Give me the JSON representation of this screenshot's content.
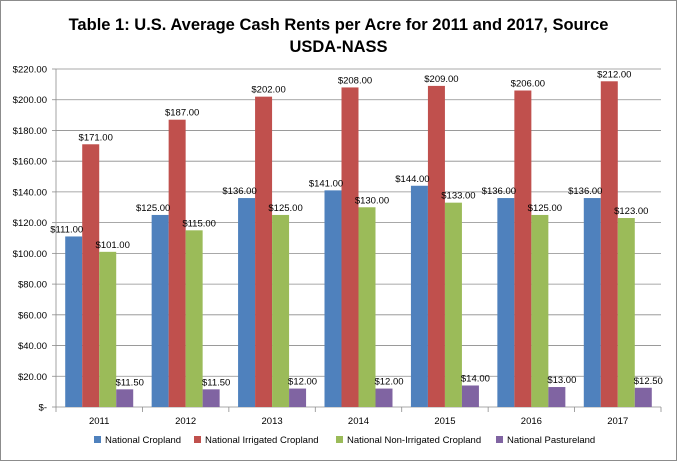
{
  "chart_data": {
    "type": "bar",
    "title_line1": "Table 1: U.S. Average Cash Rents per Acre for 2011 and 2017, Source",
    "title_line2": "USDA-NASS",
    "categories": [
      "2011",
      "2012",
      "2013",
      "2014",
      "2015",
      "2016",
      "2017"
    ],
    "series": [
      {
        "name": "National Cropland",
        "color": "#4f81bd",
        "values": [
          111,
          125,
          136,
          141,
          144,
          136,
          136
        ],
        "labels": [
          "$111.00",
          "$125.00",
          "$136.00",
          "$141.00",
          "$144.00",
          "$136.00",
          "$136.00"
        ]
      },
      {
        "name": "National Irrigated Cropland",
        "color": "#c0504d",
        "values": [
          171,
          187,
          202,
          208,
          209,
          206,
          212
        ],
        "labels": [
          "$171.00",
          "$187.00",
          "$202.00",
          "$208.00",
          "$209.00",
          "$206.00",
          "$212.00"
        ]
      },
      {
        "name": "National Non-Irrigated Cropland",
        "color": "#9bbb59",
        "values": [
          101,
          115,
          125,
          130,
          133,
          125,
          123
        ],
        "labels": [
          "$101.00",
          "$115.00",
          "$125.00",
          "$130.00",
          "$133.00",
          "$125.00",
          "$123.00"
        ]
      },
      {
        "name": "National Pastureland",
        "color": "#8064a2",
        "values": [
          11.5,
          11.5,
          12,
          12,
          14,
          13,
          12.5
        ],
        "labels": [
          "$11.50",
          "$11.50",
          "$12.00",
          "$12.00",
          "$14.00",
          "$13.00",
          "$12.50"
        ]
      }
    ],
    "ylim": [
      0,
      220
    ],
    "yticks": [
      0,
      20,
      40,
      60,
      80,
      100,
      120,
      140,
      160,
      180,
      200,
      220
    ],
    "ytick_labels": [
      "$-",
      "$20.00",
      "$40.00",
      "$60.00",
      "$80.00",
      "$100.00",
      "$120.00",
      "$140.00",
      "$160.00",
      "$180.00",
      "$200.00",
      "$220.00"
    ],
    "grid": true,
    "legend_position": "bottom"
  }
}
